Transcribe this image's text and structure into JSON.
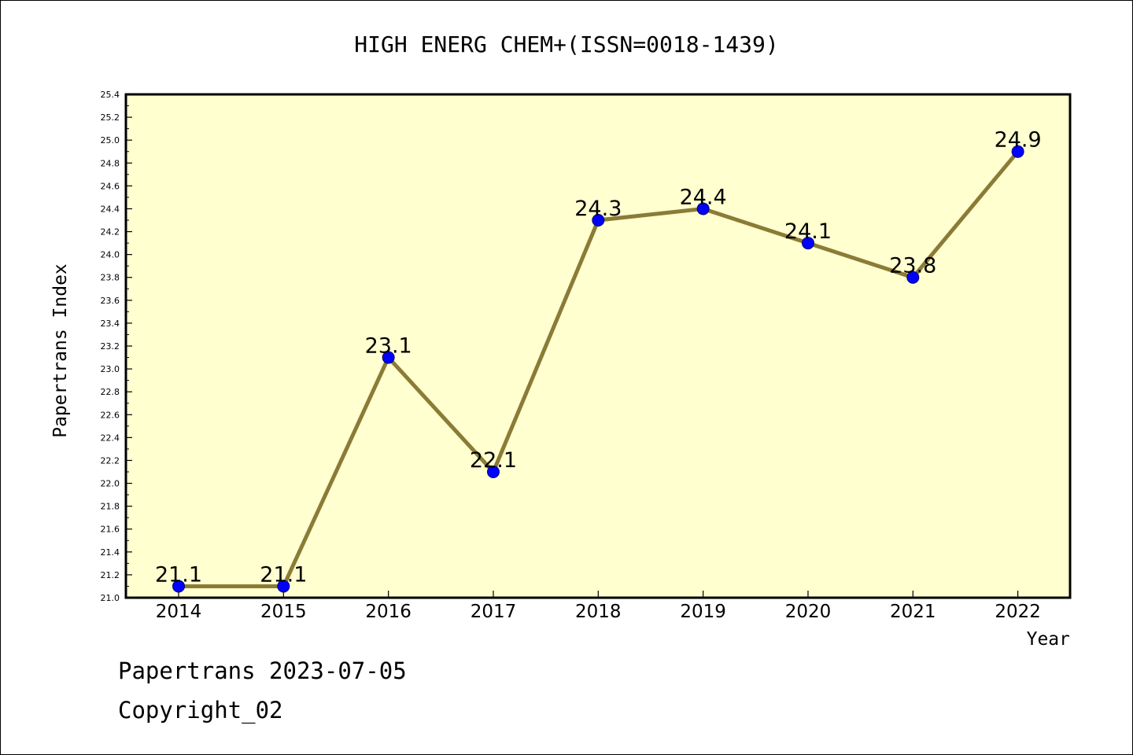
{
  "chart_data": {
    "type": "line",
    "title": "HIGH ENERG CHEM+(ISSN=0018-1439)",
    "xlabel": "Year",
    "ylabel": "Papertrans Index",
    "categories": [
      "2014",
      "2015",
      "2016",
      "2017",
      "2018",
      "2019",
      "2020",
      "2021",
      "2022"
    ],
    "series": [
      {
        "values": [
          21.1,
          21.1,
          23.1,
          22.1,
          24.3,
          24.4,
          24.1,
          23.8,
          24.9
        ],
        "labels": [
          "21.1",
          "21.1",
          "23.1",
          "22.1",
          "24.3",
          "24.4",
          "24.1",
          "23.8",
          "24.9"
        ]
      }
    ],
    "ylim": [
      21.0,
      25.4
    ],
    "yticks": [
      "21.0",
      "21.2",
      "21.4",
      "21.6",
      "21.8",
      "22.0",
      "22.2",
      "22.4",
      "22.6",
      "22.8",
      "23.0",
      "23.2",
      "23.4",
      "23.6",
      "23.8",
      "24.0",
      "24.2",
      "24.4",
      "24.6",
      "24.8",
      "25.0",
      "25.2",
      "25.4"
    ],
    "grid": false,
    "colors": {
      "plot_background": "#ffffd0",
      "line": "#8b7b36",
      "marker": "#0000ff"
    }
  },
  "footer": {
    "date_line": "Papertrans 2023-07-05",
    "copyright": "Copyright_02"
  }
}
